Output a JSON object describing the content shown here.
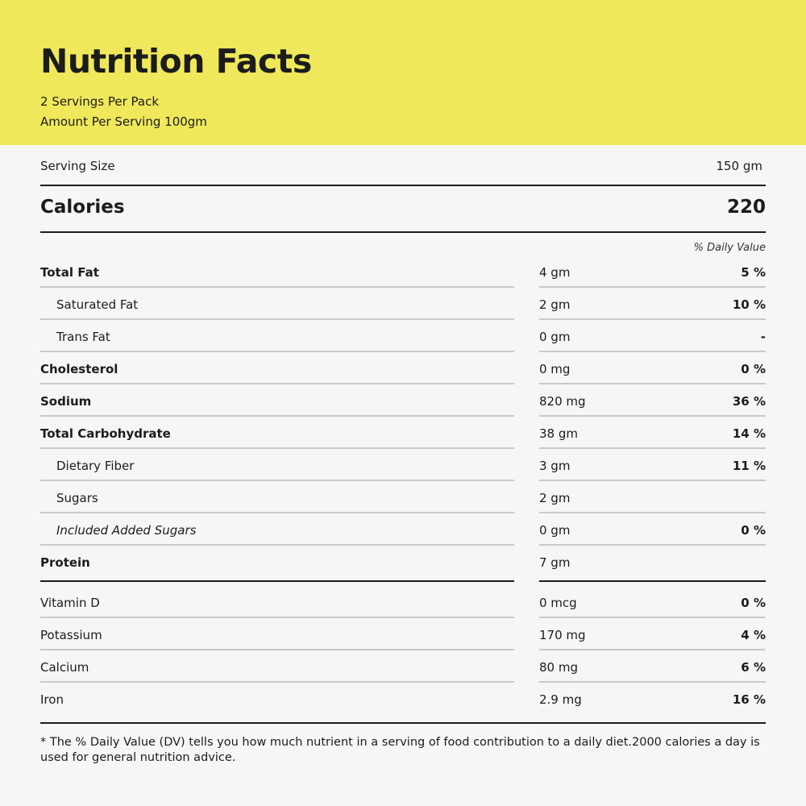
{
  "header": {
    "title": "Nutrition Facts",
    "servings_per_pack": "2 Servings Per Pack",
    "amount_per_serving": "Amount Per Serving 100gm",
    "background_color": "#efe85a"
  },
  "serving": {
    "label": "Serving Size",
    "value": "150 gm"
  },
  "calories": {
    "label": "Calories",
    "value": "220"
  },
  "daily_value_header": "% Daily Value",
  "nutrients": [
    {
      "label": "Total Fat",
      "amount": "4 gm",
      "dv": "5 %"
    },
    {
      "label": "Saturated Fat",
      "amount": "2 gm",
      "dv": "10 %"
    },
    {
      "label": "Trans Fat",
      "amount": "0 gm",
      "dv": "-"
    },
    {
      "label": "Cholesterol",
      "amount": "0 mg",
      "dv": "0 %"
    },
    {
      "label": "Sodium",
      "amount": "820 mg",
      "dv": "36 %"
    },
    {
      "label": "Total Carbohydrate",
      "amount": "38 gm",
      "dv": "14 %"
    },
    {
      "label": "Dietary Fiber",
      "amount": "3 gm",
      "dv": "11 %"
    },
    {
      "label": "Sugars",
      "amount": "2 gm",
      "dv": ""
    },
    {
      "label": "Included Added Sugars",
      "amount": "0 gm",
      "dv": "0 %"
    },
    {
      "label": "Protein",
      "amount": "7 gm",
      "dv": ""
    }
  ],
  "vitamins": [
    {
      "label": "Vitamin D",
      "amount": "0 mcg",
      "dv": "0 %"
    },
    {
      "label": "Potassium",
      "amount": "170 mg",
      "dv": "4 %"
    },
    {
      "label": "Calcium",
      "amount": "80 mg",
      "dv": "6 %"
    },
    {
      "label": "Iron",
      "amount": "2.9 mg",
      "dv": "16 %"
    }
  ],
  "footnote": "* The % Daily Value (DV) tells you how much nutrient in a serving of food contribution to a daily diet.2000 calories a day is used for general nutrition advice."
}
